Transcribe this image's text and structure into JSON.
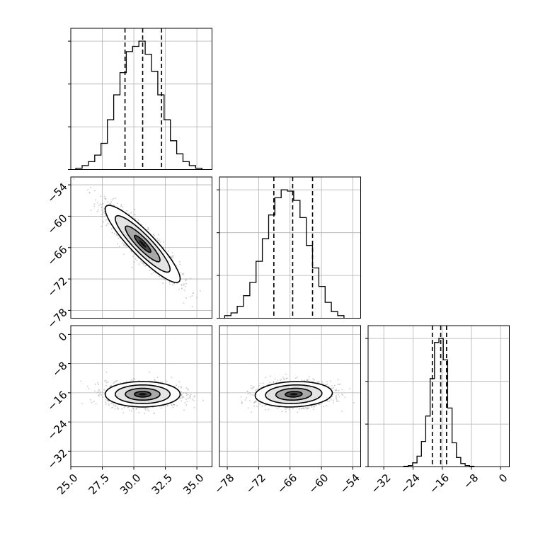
{
  "chart_data": {
    "type": "corner",
    "parameters": [
      {
        "range": [
          25.0,
          36.2
        ],
        "ticks": [
          25.0,
          27.5,
          30.0,
          32.5,
          35.0
        ],
        "tick_labels": [
          "25.0",
          "27.5",
          "30.0",
          "32.5",
          "35.0"
        ],
        "mean": 30.7,
        "sd": 1.45,
        "quantiles": [
          29.3,
          30.7,
          32.2
        ]
      },
      {
        "range": [
          -79.5,
          -52.5
        ],
        "ticks": [
          -78,
          -72,
          -66,
          -60,
          -54
        ],
        "tick_labels": [
          "−78",
          "−72",
          "−66",
          "−60",
          "−54"
        ],
        "mean": -65.3,
        "sd": 3.6,
        "quantiles": [
          -69.1,
          -65.5,
          -61.7
        ]
      },
      {
        "range": [
          -36.3,
          2.4
        ],
        "ticks": [
          -32,
          -24,
          -16,
          -8,
          0
        ],
        "tick_labels": [
          "−32",
          "−24",
          "−16",
          "−8",
          "0"
        ],
        "mean": -16.4,
        "sd": 1.7,
        "quantiles": [
          -18.7,
          -16.4,
          -14.8
        ]
      }
    ],
    "histograms": [
      {
        "param": 0,
        "edges": [
          25.4,
          25.9,
          26.4,
          26.9,
          27.4,
          27.9,
          28.4,
          28.9,
          29.4,
          29.9,
          30.4,
          30.9,
          31.4,
          31.9,
          32.4,
          32.9,
          33.4,
          33.9,
          34.4,
          34.9,
          35.4
        ],
        "counts": [
          1,
          3,
          6,
          11,
          20,
          38,
          57,
          74,
          90,
          94,
          98,
          88,
          75,
          57,
          38,
          22,
          12,
          6,
          3,
          1
        ]
      },
      {
        "param": 1,
        "edges": [
          -78.5,
          -77.3,
          -76.1,
          -74.9,
          -73.7,
          -72.5,
          -71.3,
          -70.1,
          -68.9,
          -67.7,
          -66.5,
          -65.3,
          -64.1,
          -62.9,
          -61.7,
          -60.5,
          -59.3,
          -58.1,
          -56.9,
          -55.7
        ],
        "counts": [
          2,
          4,
          9,
          17,
          27,
          43,
          60,
          78,
          91,
          97,
          96,
          89,
          76,
          55,
          38,
          24,
          12,
          5,
          2
        ]
      },
      {
        "param": 2,
        "edges": [
          -26.5,
          -25.3,
          -24.1,
          -22.9,
          -21.7,
          -20.5,
          -19.3,
          -18.1,
          -16.9,
          -15.7,
          -14.5,
          -13.3,
          -12.1,
          -10.9,
          -9.7,
          -8.5,
          -7.3
        ],
        "counts": [
          0.5,
          1,
          3,
          8,
          19,
          38,
          66,
          93,
          96,
          80,
          44,
          18,
          7,
          2.5,
          1,
          0.5
        ]
      }
    ],
    "pairs": [
      {
        "x_param": 0,
        "y_param": 1,
        "correlation": -0.9
      },
      {
        "x_param": 0,
        "y_param": 2,
        "correlation": 0.0
      },
      {
        "x_param": 1,
        "y_param": 2,
        "correlation": 0.1
      }
    ],
    "xlabel": "",
    "ylabel": "",
    "grid": true
  }
}
